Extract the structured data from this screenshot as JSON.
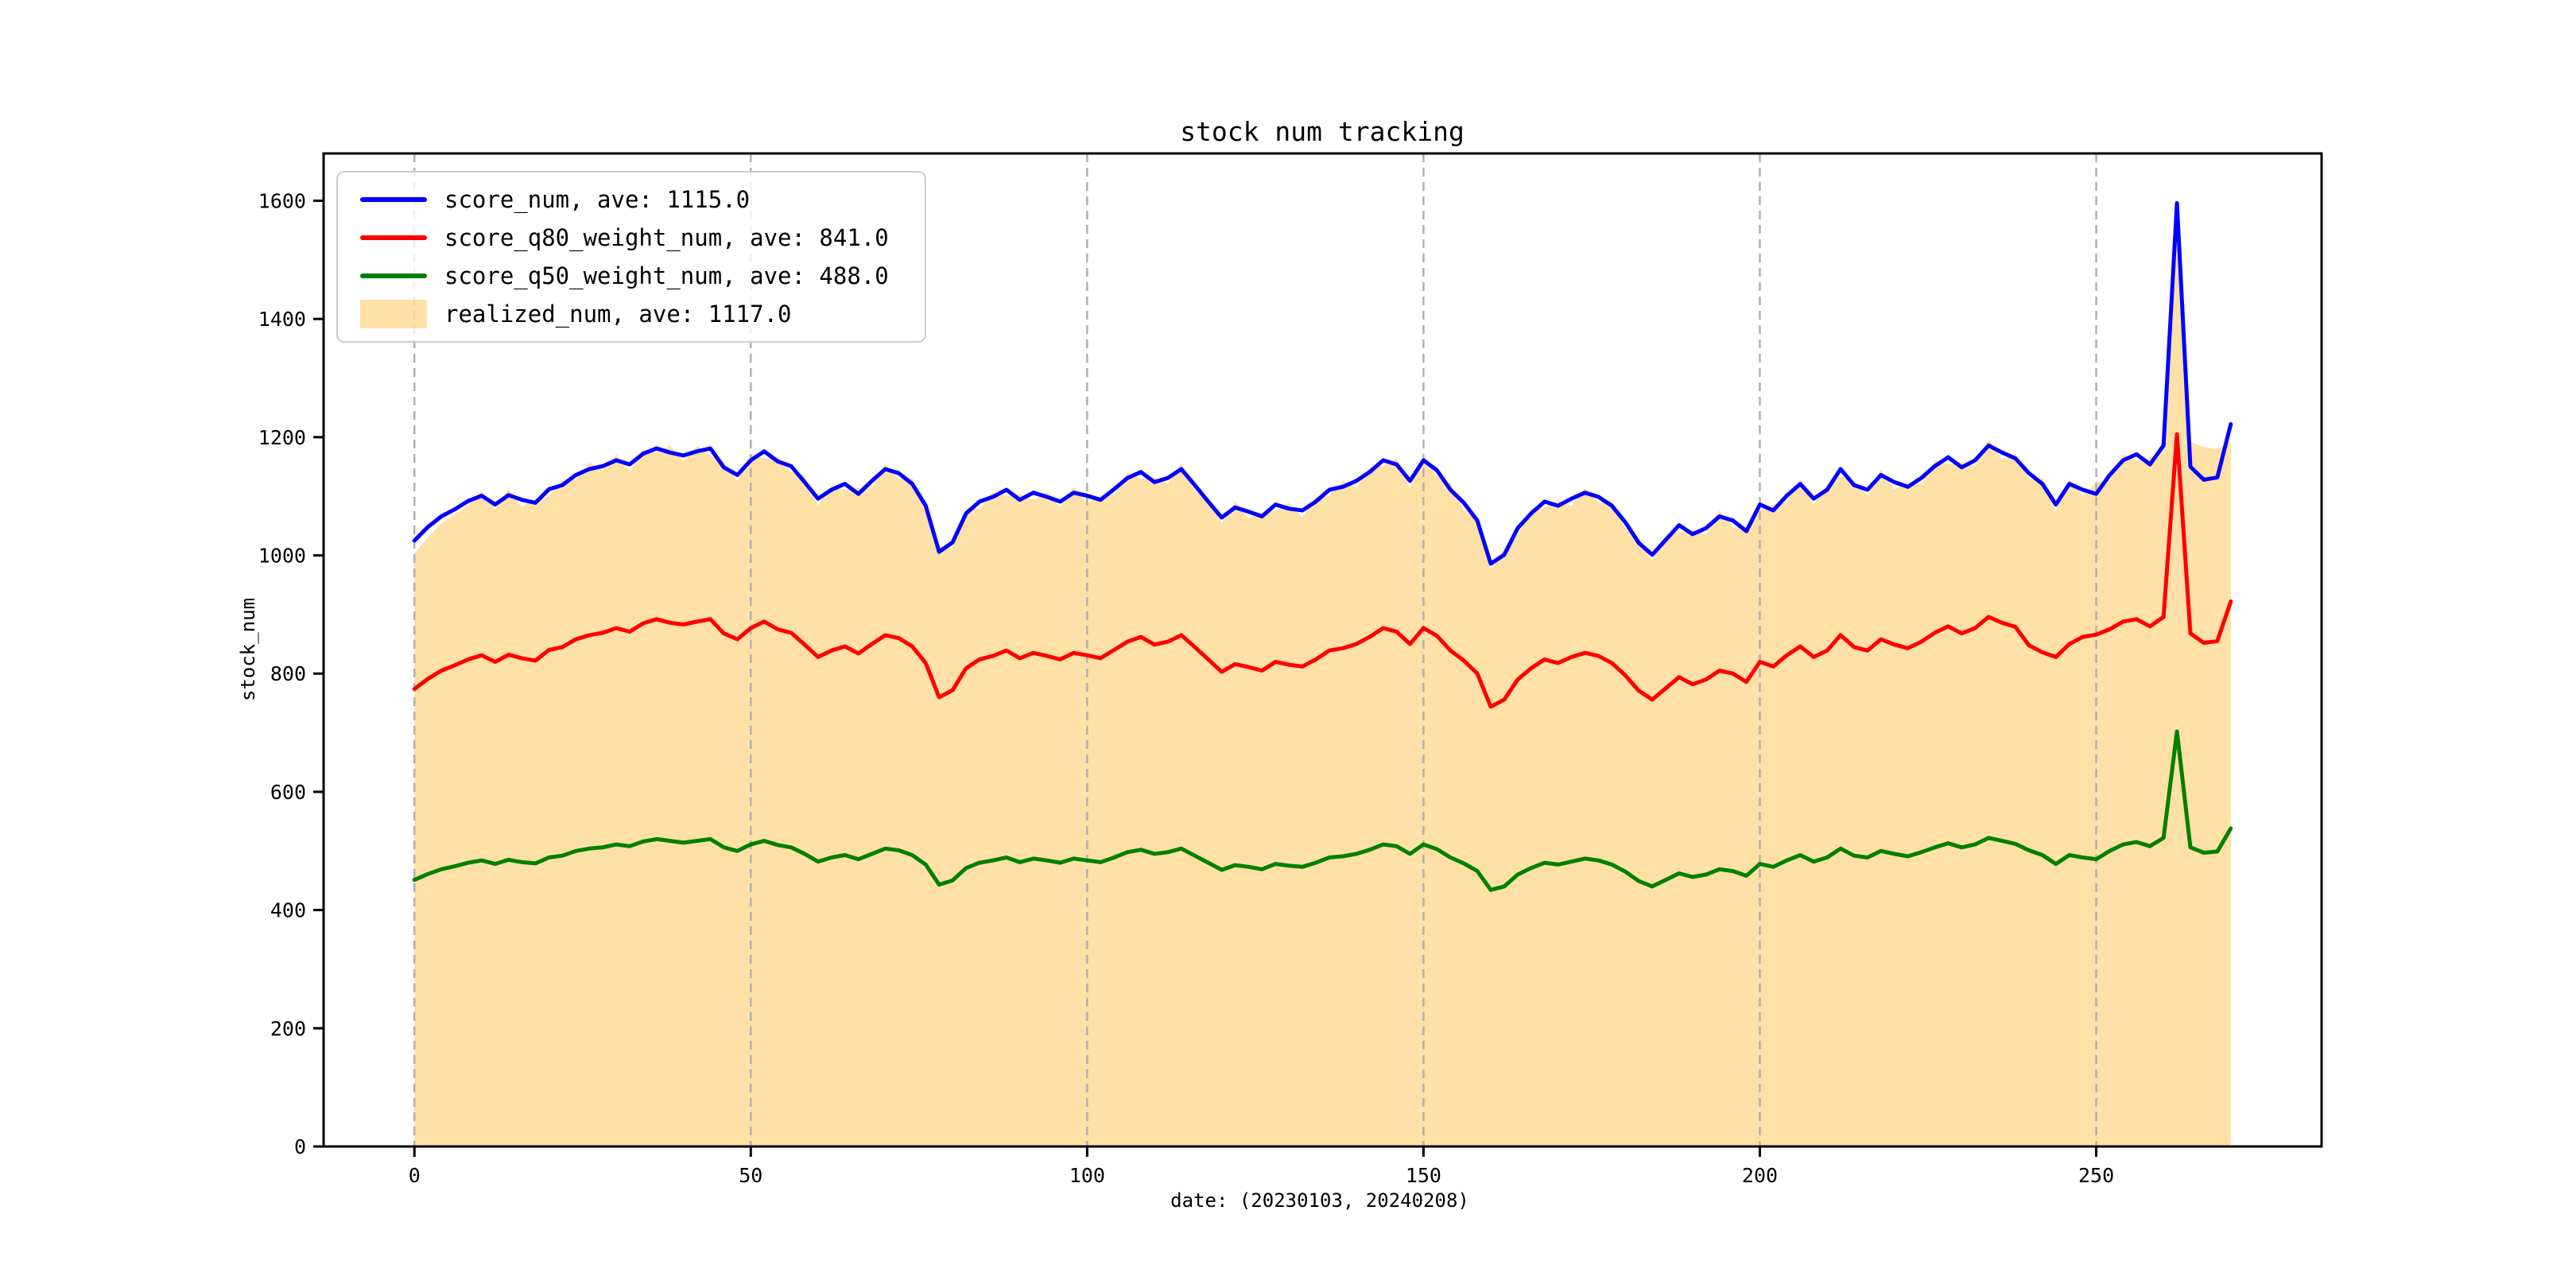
{
  "figure": {
    "title": "stock num tracking"
  },
  "legend": {
    "items": [
      {
        "label": "score_num, ave: 1115.0",
        "color": "#0000ff",
        "type": "line"
      },
      {
        "label": "score_q80_weight_num, ave: 841.0",
        "color": "#ff0000",
        "type": "line"
      },
      {
        "label": "score_q50_weight_num, ave: 488.0",
        "color": "#008000",
        "type": "line"
      },
      {
        "label": "realized_num, ave: 1117.0",
        "color": "rgba(255,165,0,0.35)",
        "type": "patch"
      }
    ],
    "position": "upper-left"
  },
  "chart_data": {
    "type": "line",
    "title": "stock num tracking",
    "xlabel": "date: (20230103, 20240208)",
    "ylabel": "stock_num",
    "xlim": [
      -13.5,
      283.5
    ],
    "ylim": [
      0,
      1680
    ],
    "xticks": [
      0,
      50,
      100,
      150,
      200,
      250
    ],
    "yticks": [
      0,
      200,
      400,
      600,
      800,
      1000,
      1200,
      1400,
      1600
    ],
    "grid": "vertical-dashed",
    "grid_color": "#b0b0b0",
    "x_start": 0,
    "x_step": 2,
    "series": [
      {
        "name": "realized_num",
        "type": "area",
        "color": "rgba(255,165,0,0.35)",
        "average": 1117.0,
        "values": [
          1003,
          1030,
          1054,
          1070,
          1086,
          1109,
          1078,
          1112,
          1082,
          1095,
          1100,
          1129,
          1128,
          1158,
          1143,
          1171,
          1142,
          1180,
          1173,
          1186,
          1159,
          1186,
          1169,
          1157,
          1126,
          1171,
          1164,
          1167,
          1141,
          1134,
          1084,
          1119,
          1111,
          1114,
          1114,
          1154,
          1129,
          1131,
          1072,
          1014,
          1012,
          1081,
          1079,
          1107,
          1101,
          1104,
          1094,
          1107,
          1081,
          1116,
          1089,
          1102,
          1102,
          1141,
          1129,
          1132,
          1121,
          1156,
          1107,
          1099,
          1054,
          1091,
          1062,
          1074,
          1076,
          1089,
          1064,
          1099,
          1101,
          1126,
          1114,
          1149,
          1151,
          1164,
          1114,
          1169,
          1134,
          1121,
          1077,
          1067,
          976,
          1011,
          1034,
          1079,
          1081,
          1094,
          1084,
          1114,
          1089,
          1094,
          1044,
          1029,
          991,
          1036,
          1039,
          1044,
          1036,
          1076,
          1047,
          1049,
          1076,
          1086,
          1089,
          1129,
          1086,
          1121,
          1134,
          1127,
          1101,
          1146,
          1112,
          1124,
          1121,
          1161,
          1154,
          1157,
          1151,
          1196,
          1162,
          1172,
          1129,
          1131,
          1074,
          1129,
          1101,
          1124,
          1128,
          1171,
          1161,
          1166,
          1178,
          1578,
          1192,
          1183,
          1180,
          1192
        ]
      },
      {
        "name": "score_num",
        "type": "line",
        "color": "#0000ff",
        "average": 1115.0,
        "values": [
          1025,
          1048,
          1066,
          1078,
          1092,
          1101,
          1086,
          1102,
          1094,
          1089,
          1112,
          1119,
          1136,
          1146,
          1151,
          1161,
          1154,
          1172,
          1181,
          1174,
          1169,
          1176,
          1181,
          1149,
          1136,
          1161,
          1176,
          1159,
          1151,
          1124,
          1096,
          1111,
          1121,
          1104,
          1126,
          1146,
          1139,
          1121,
          1084,
          1006,
          1022,
          1071,
          1091,
          1099,
          1111,
          1094,
          1106,
          1099,
          1091,
          1106,
          1101,
          1094,
          1112,
          1131,
          1141,
          1124,
          1131,
          1146,
          1119,
          1091,
          1064,
          1081,
          1074,
          1066,
          1086,
          1079,
          1076,
          1091,
          1111,
          1116,
          1126,
          1141,
          1161,
          1154,
          1126,
          1161,
          1144,
          1111,
          1089,
          1059,
          986,
          1001,
          1046,
          1071,
          1091,
          1084,
          1096,
          1106,
          1099,
          1084,
          1056,
          1021,
          1001,
          1026,
          1051,
          1036,
          1046,
          1066,
          1059,
          1041,
          1086,
          1076,
          1101,
          1121,
          1096,
          1111,
          1146,
          1119,
          1111,
          1136,
          1124,
          1116,
          1131,
          1151,
          1166,
          1149,
          1161,
          1186,
          1174,
          1164,
          1139,
          1121,
          1086,
          1121,
          1111,
          1104,
          1136,
          1161,
          1171,
          1154,
          1186,
          1596,
          1150,
          1128,
          1132,
          1222
        ]
      },
      {
        "name": "score_q80_weight_num",
        "type": "line",
        "color": "#ff0000",
        "average": 841.0,
        "values": [
          774,
          791,
          805,
          814,
          824,
          831,
          820,
          832,
          826,
          822,
          840,
          845,
          858,
          865,
          869,
          877,
          871,
          885,
          892,
          886,
          883,
          888,
          892,
          868,
          858,
          877,
          888,
          875,
          869,
          849,
          828,
          839,
          846,
          834,
          850,
          865,
          860,
          846,
          818,
          760,
          772,
          809,
          824,
          830,
          839,
          826,
          835,
          830,
          824,
          835,
          831,
          826,
          840,
          854,
          862,
          849,
          854,
          865,
          845,
          824,
          803,
          816,
          811,
          805,
          820,
          815,
          812,
          824,
          839,
          843,
          850,
          862,
          877,
          871,
          850,
          877,
          864,
          839,
          822,
          800,
          744,
          756,
          790,
          809,
          824,
          818,
          828,
          835,
          830,
          818,
          797,
          771,
          756,
          775,
          794,
          782,
          790,
          805,
          800,
          786,
          820,
          812,
          831,
          846,
          828,
          839,
          865,
          845,
          839,
          858,
          849,
          843,
          854,
          869,
          880,
          868,
          877,
          896,
          886,
          879,
          848,
          836,
          828,
          850,
          862,
          866,
          875,
          888,
          892,
          880,
          896,
          1205,
          868,
          852,
          855,
          922
        ]
      },
      {
        "name": "score_q50_weight_num",
        "type": "line",
        "color": "#008000",
        "average": 488.0,
        "values": [
          451,
          461,
          469,
          474,
          480,
          484,
          478,
          485,
          481,
          479,
          489,
          492,
          500,
          504,
          506,
          511,
          508,
          516,
          520,
          517,
          514,
          517,
          520,
          506,
          500,
          511,
          517,
          510,
          506,
          495,
          482,
          489,
          493,
          486,
          495,
          504,
          501,
          493,
          477,
          443,
          450,
          471,
          480,
          484,
          489,
          481,
          487,
          484,
          480,
          487,
          484,
          481,
          489,
          498,
          502,
          495,
          498,
          504,
          492,
          480,
          468,
          476,
          473,
          469,
          478,
          475,
          473,
          480,
          489,
          491,
          495,
          502,
          511,
          508,
          495,
          511,
          503,
          489,
          479,
          466,
          434,
          440,
          460,
          471,
          480,
          477,
          482,
          487,
          484,
          477,
          465,
          449,
          440,
          451,
          462,
          456,
          460,
          469,
          466,
          458,
          478,
          473,
          484,
          493,
          482,
          489,
          504,
          492,
          489,
          500,
          495,
          491,
          498,
          506,
          513,
          506,
          511,
          522,
          517,
          512,
          501,
          493,
          478,
          493,
          489,
          486,
          500,
          511,
          515,
          508,
          522,
          702,
          506,
          497,
          499,
          538
        ]
      }
    ]
  }
}
